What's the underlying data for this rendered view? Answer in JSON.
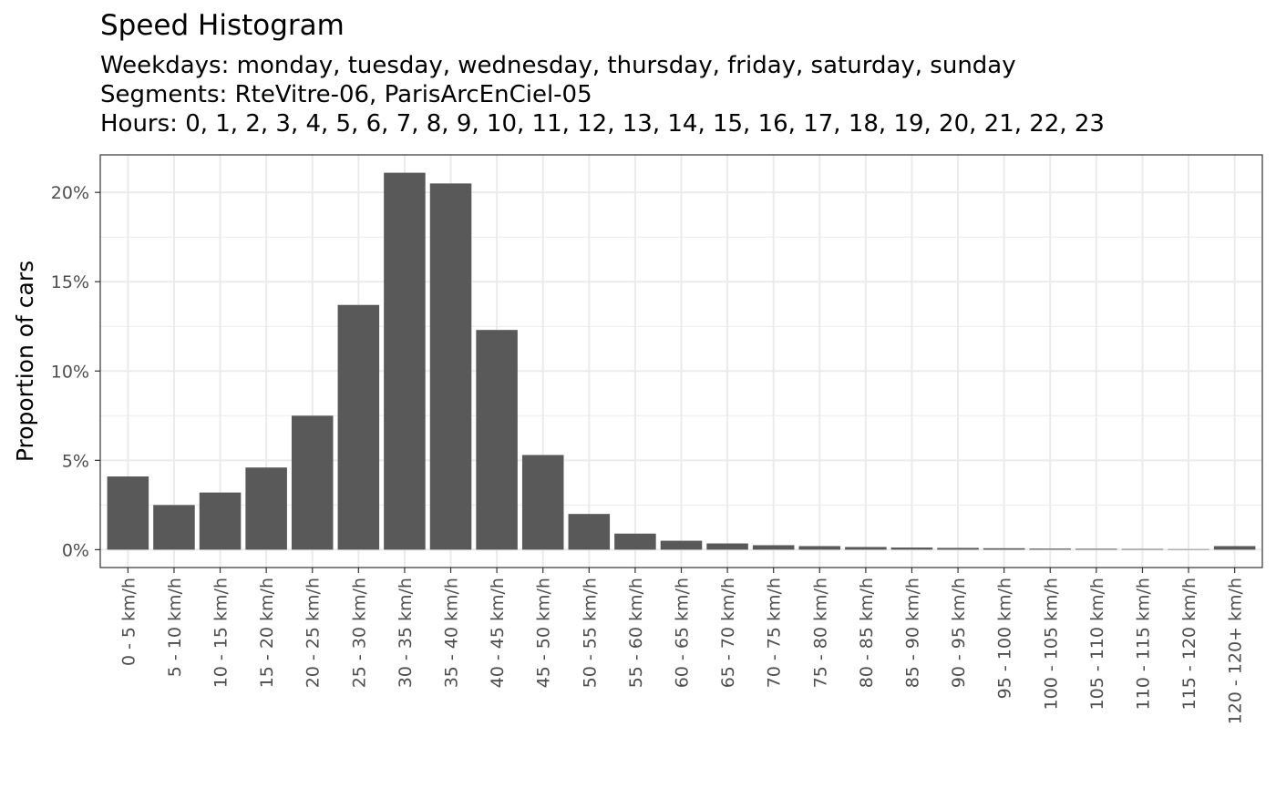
{
  "chart_data": {
    "type": "bar",
    "title": "Speed Histogram",
    "subtitle_lines": [
      "Weekdays: monday, tuesday, wednesday, thursday, friday, saturday, sunday",
      "Segments: RteVitre-06, ParisArcEnCiel-05",
      "Hours: 0, 1, 2, 3, 4, 5, 6, 7, 8, 9, 10, 11, 12, 13, 14, 15, 16, 17, 18, 19, 20, 21, 22, 23"
    ],
    "xlabel": "",
    "ylabel": "Proportion of cars",
    "categories": [
      "0 - 5 km/h",
      "5 - 10 km/h",
      "10 - 15 km/h",
      "15 - 20 km/h",
      "20 - 25 km/h",
      "25 - 30 km/h",
      "30 - 35 km/h",
      "35 - 40 km/h",
      "40 - 45 km/h",
      "45 - 50 km/h",
      "50 - 55 km/h",
      "55 - 60 km/h",
      "60 - 65 km/h",
      "65 - 70 km/h",
      "70 - 75 km/h",
      "75 - 80 km/h",
      "80 - 85 km/h",
      "85 - 90 km/h",
      "90 - 95 km/h",
      "95 - 100 km/h",
      "100 - 105 km/h",
      "105 - 110 km/h",
      "110 - 115 km/h",
      "115 - 120 km/h",
      "120 - 120+ km/h"
    ],
    "values": [
      4.1,
      2.5,
      3.2,
      4.6,
      7.5,
      13.7,
      21.1,
      20.5,
      12.3,
      5.3,
      2.0,
      0.9,
      0.5,
      0.35,
      0.25,
      0.2,
      0.15,
      0.12,
      0.1,
      0.08,
      0.06,
      0.05,
      0.04,
      0.03,
      0.2
    ],
    "y_ticks": [
      0,
      5,
      10,
      15,
      20
    ],
    "y_tick_labels": [
      "0%",
      "5%",
      "10%",
      "15%",
      "20%"
    ],
    "ylim": [
      -1.0,
      22.1
    ],
    "grid": true,
    "colors": {
      "bar": "#595959",
      "grid": "#ebebeb",
      "panel_border": "#333333"
    }
  }
}
